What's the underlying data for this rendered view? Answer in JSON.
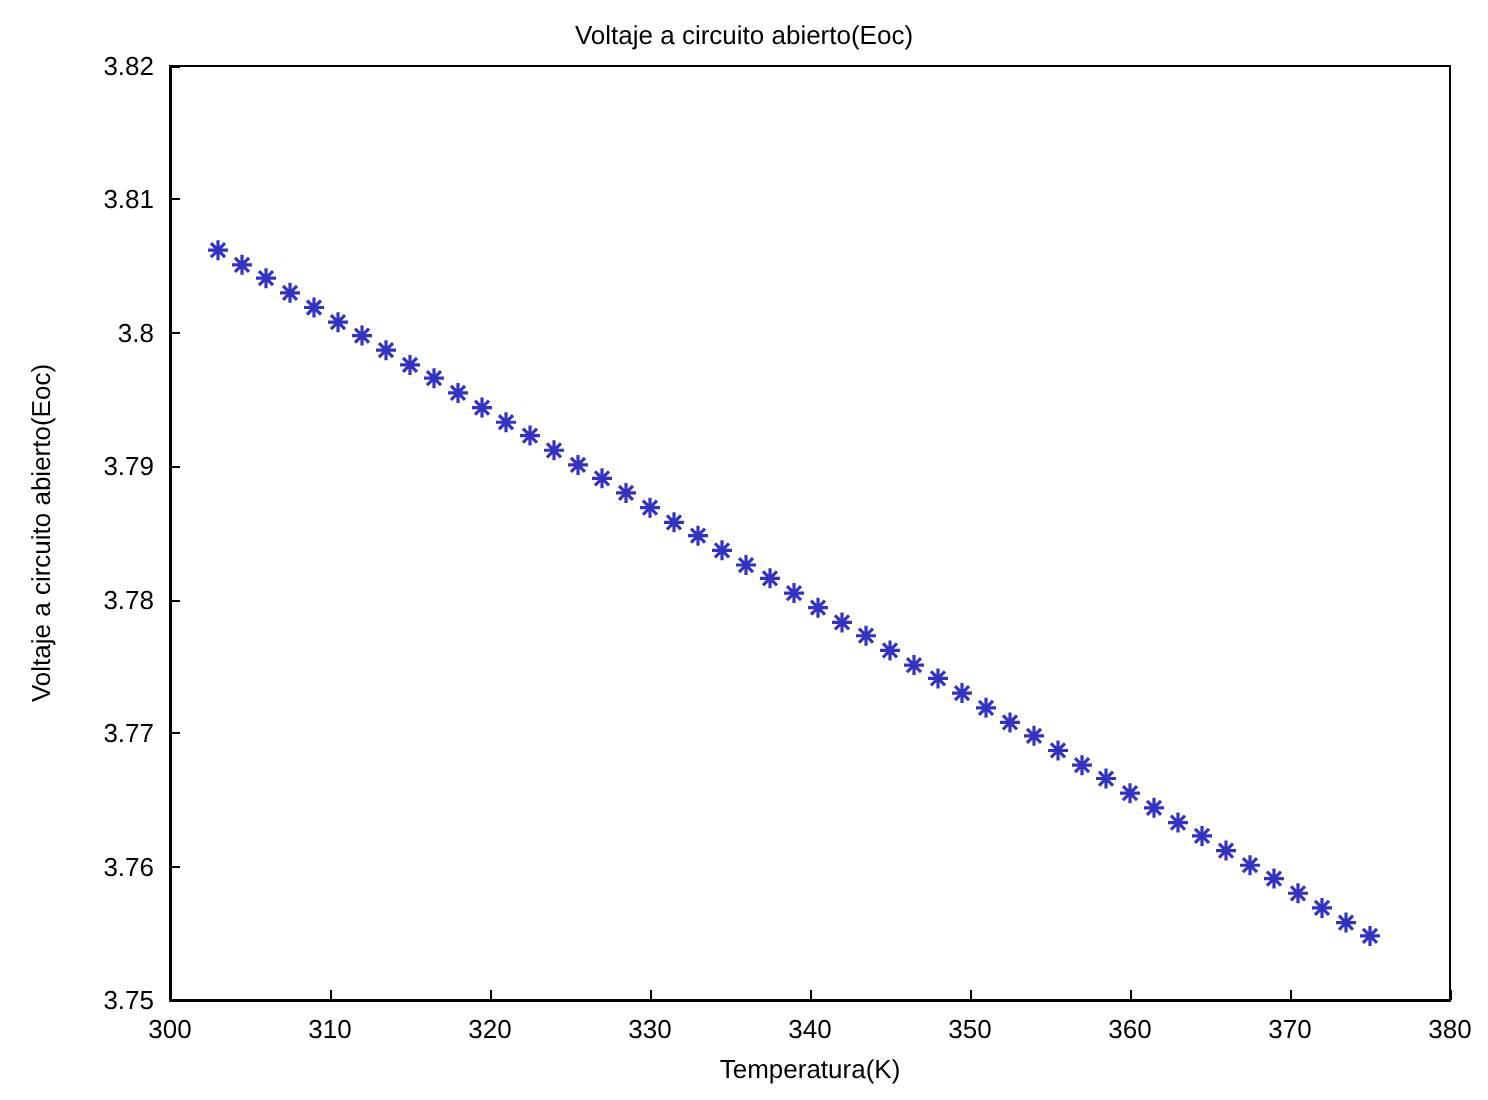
{
  "chart_data": {
    "type": "scatter",
    "title": "Voltaje a circuito abierto(Eoc)",
    "xlabel": "Temperatura(K)",
    "ylabel": "Voltaje a circuito abierto(Eoc)",
    "x": [
      303,
      304.5,
      306,
      307.5,
      309,
      310.5,
      312,
      313.5,
      315,
      316.5,
      318,
      319.5,
      321,
      322.5,
      324,
      325.5,
      327,
      328.5,
      330,
      331.5,
      333,
      334.5,
      336,
      337.5,
      339,
      340.5,
      342,
      343.5,
      345,
      346.5,
      348,
      349.5,
      351,
      352.5,
      354,
      355.5,
      357,
      358.5,
      360,
      361.5,
      363,
      364.5,
      366,
      367.5,
      369,
      370.5,
      372,
      373.5,
      375
    ],
    "series": [
      {
        "color": "#0000b4",
        "values": [
          3.8062,
          3.8051,
          3.8041,
          3.803,
          3.8019,
          3.8008,
          3.7998,
          3.7987,
          3.7976,
          3.7966,
          3.7955,
          3.7944,
          3.7933,
          3.7923,
          3.7912,
          3.7901,
          3.7891,
          3.788,
          3.7869,
          3.7858,
          3.7848,
          3.7837,
          3.7826,
          3.7816,
          3.7805,
          3.7794,
          3.7783,
          3.7773,
          3.7762,
          3.7751,
          3.7741,
          3.773,
          3.7719,
          3.7708,
          3.7698,
          3.7687,
          3.7676,
          3.7666,
          3.7655,
          3.7644,
          3.7633,
          3.7623,
          3.7612,
          3.7601,
          3.7591,
          3.758,
          3.7569,
          3.7558,
          3.7548
        ]
      }
    ],
    "xlim": [
      300,
      380
    ],
    "xticks": [
      300,
      310,
      320,
      330,
      340,
      350,
      360,
      370,
      380
    ],
    "ylim": [
      3.75,
      3.82
    ],
    "yticks": [
      3.75,
      3.76,
      3.77,
      3.78,
      3.79,
      3.8,
      3.81,
      3.82
    ],
    "marker": "cross",
    "grid": false
  }
}
